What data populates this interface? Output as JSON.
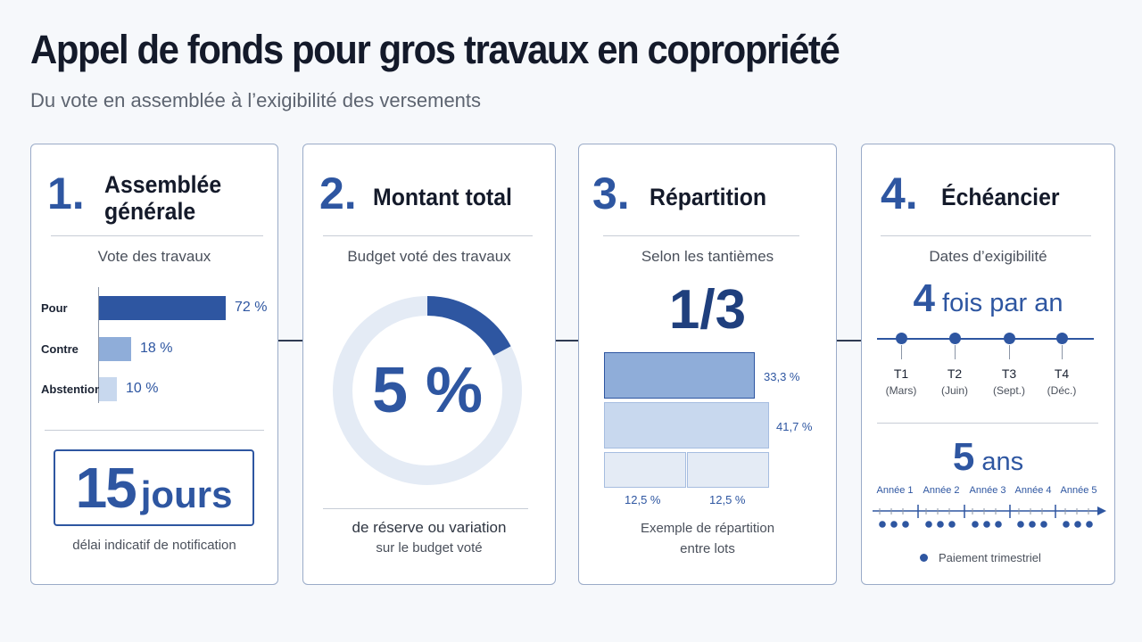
{
  "title": "Appel de fonds pour gros travaux en copropriété",
  "subtitle": "Du vote en assemblée à l’exigibilité des versements",
  "colors": {
    "primary": "#2e56a1",
    "mid": "#8fadd9",
    "light": "#c8d8ee",
    "faint": "#e4ebf5"
  },
  "steps": {
    "assemblee": {
      "number": "1.",
      "heading_line1": "Assemblée",
      "heading_line2": "générale",
      "subtitle": "Vote des travaux",
      "votes": [
        {
          "label": "Pour",
          "value": 72,
          "display": "72 %"
        },
        {
          "label": "Contre",
          "value": 18,
          "display": "18 %"
        },
        {
          "label": "Abstention",
          "value": 10,
          "display": "10 %"
        }
      ],
      "days_number": "15",
      "days_unit": "jours",
      "days_note": "délai indicatif de notification"
    },
    "montant": {
      "number": "2.",
      "heading": "Montant total",
      "subtitle": "Budget voté des travaux",
      "percent_value": 5,
      "percent_display": "5 %",
      "note_line1": "de réserve ou variation",
      "note_line2": "sur le budget voté"
    },
    "repartition": {
      "number": "3.",
      "heading": "Répartition",
      "subtitle": "Selon les tantièmes",
      "ratio": "1/3",
      "lots": [
        {
          "value": 33.3,
          "display": "33,3 %"
        },
        {
          "value": 41.7,
          "display": "41,7 %"
        },
        {
          "value": 12.5,
          "display": "12,5 %"
        },
        {
          "value": 12.5,
          "display": "12,5 %"
        }
      ],
      "note_line1": "Exemple de répartition",
      "note_line2": "entre lots"
    },
    "echeancier": {
      "number": "4.",
      "heading": "Échéancier",
      "subtitle": "Dates d’exigibilité",
      "frequency_number": "4",
      "frequency_text": "fois par an",
      "quarters": [
        {
          "label": "T1",
          "month": "(Mars)"
        },
        {
          "label": "T2",
          "month": "(Juin)"
        },
        {
          "label": "T3",
          "month": "(Sept.)"
        },
        {
          "label": "T4",
          "month": "(Déc.)"
        }
      ],
      "duration_number": "5",
      "duration_text": "ans",
      "years": [
        "Année 1",
        "Année 2",
        "Année 3",
        "Année 4",
        "Année 5"
      ],
      "legend": "Paiement trimestriel"
    }
  }
}
